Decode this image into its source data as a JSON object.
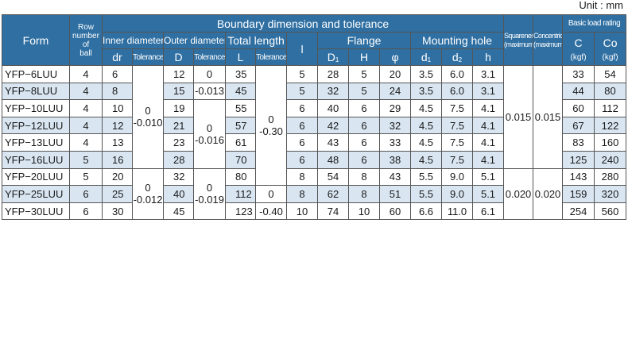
{
  "unit_label": "Unit : mm",
  "headers": {
    "form": "Form",
    "row_number": [
      "Row",
      "number",
      "of",
      "ball"
    ],
    "boundary": "Boundary dimension and tolerance",
    "inner_diameter": "Inner diameter",
    "outer_diameter": "Outer diameter",
    "total_length": "Total length",
    "l": "l",
    "flange": "Flange",
    "mounting_hole": "Mounting hole",
    "squareness": [
      "Squareness",
      "(maximum)"
    ],
    "concentricity": [
      "Concentricity",
      "(maximum)"
    ],
    "basic_load": "Basic load rating",
    "dr": "dr",
    "tolerance": "Tolerance",
    "d_outer": "D",
    "L": "L",
    "D1_main": "D",
    "D1_sub": "1",
    "H": "H",
    "phi": "φ",
    "d1_main": "d",
    "d1_sub": "1",
    "d2_main": "d",
    "d2_sub": "2",
    "h": "h",
    "C": "C",
    "Co": "Co",
    "kgf": "(kgf)"
  },
  "tolerances": {
    "inner_a": [
      "0",
      "-0.010"
    ],
    "inner_b": [
      "0",
      "-0.012"
    ],
    "outer_1": "0",
    "outer_2": "-0.013",
    "outer_a": [
      "0",
      "-0.016"
    ],
    "outer_b": [
      "0",
      "-0.019"
    ],
    "length_a": [
      "0",
      "-0.30"
    ],
    "length_b": [
      "0",
      "-0.40"
    ],
    "squareness_a": "0.015",
    "squareness_b": "0.020",
    "concentricity_a": "0.015",
    "concentricity_b": "0.020"
  },
  "rows": [
    {
      "form": "YFP−6LUU",
      "balls": "4",
      "dr": "6",
      "D": "12",
      "L": "35",
      "l": "5",
      "D1": "28",
      "H": "5",
      "phi": "20",
      "d1": "3.5",
      "d2": "6.0",
      "h": "3.1",
      "C": "33",
      "Co": "54"
    },
    {
      "form": "YFP−8LUU",
      "balls": "4",
      "dr": "8",
      "D": "15",
      "L": "45",
      "l": "5",
      "D1": "32",
      "H": "5",
      "phi": "24",
      "d1": "3.5",
      "d2": "6.0",
      "h": "3.1",
      "C": "44",
      "Co": "80"
    },
    {
      "form": "YFP−10LUU",
      "balls": "4",
      "dr": "10",
      "D": "19",
      "L": "55",
      "l": "6",
      "D1": "40",
      "H": "6",
      "phi": "29",
      "d1": "4.5",
      "d2": "7.5",
      "h": "4.1",
      "C": "60",
      "Co": "112"
    },
    {
      "form": "YFP−12LUU",
      "balls": "4",
      "dr": "12",
      "D": "21",
      "L": "57",
      "l": "6",
      "D1": "42",
      "H": "6",
      "phi": "32",
      "d1": "4.5",
      "d2": "7.5",
      "h": "4.1",
      "C": "67",
      "Co": "122"
    },
    {
      "form": "YFP−13LUU",
      "balls": "4",
      "dr": "13",
      "D": "23",
      "L": "61",
      "l": "6",
      "D1": "43",
      "H": "6",
      "phi": "33",
      "d1": "4.5",
      "d2": "7.5",
      "h": "4.1",
      "C": "83",
      "Co": "160"
    },
    {
      "form": "YFP−16LUU",
      "balls": "5",
      "dr": "16",
      "D": "28",
      "L": "70",
      "l": "6",
      "D1": "48",
      "H": "6",
      "phi": "38",
      "d1": "4.5",
      "d2": "7.5",
      "h": "4.1",
      "C": "125",
      "Co": "240"
    },
    {
      "form": "YFP−20LUU",
      "balls": "5",
      "dr": "20",
      "D": "32",
      "L": "80",
      "l": "8",
      "D1": "54",
      "H": "8",
      "phi": "43",
      "d1": "5.5",
      "d2": "9.0",
      "h": "5.1",
      "C": "143",
      "Co": "280"
    },
    {
      "form": "YFP−25LUU",
      "balls": "6",
      "dr": "25",
      "D": "40",
      "L": "112",
      "l": "8",
      "D1": "62",
      "H": "8",
      "phi": "51",
      "d1": "5.5",
      "d2": "9.0",
      "h": "5.1",
      "C": "159",
      "Co": "320"
    },
    {
      "form": "YFP−30LUU",
      "balls": "6",
      "dr": "30",
      "D": "45",
      "L": "123",
      "l": "10",
      "D1": "74",
      "H": "10",
      "phi": "60",
      "d1": "6.6",
      "d2": "11.0",
      "h": "6.1",
      "C": "254",
      "Co": "560"
    }
  ],
  "colors": {
    "header_bg": "#2f6fa2",
    "row_alt_bg": "#d9e6f2",
    "border": "#555555"
  }
}
